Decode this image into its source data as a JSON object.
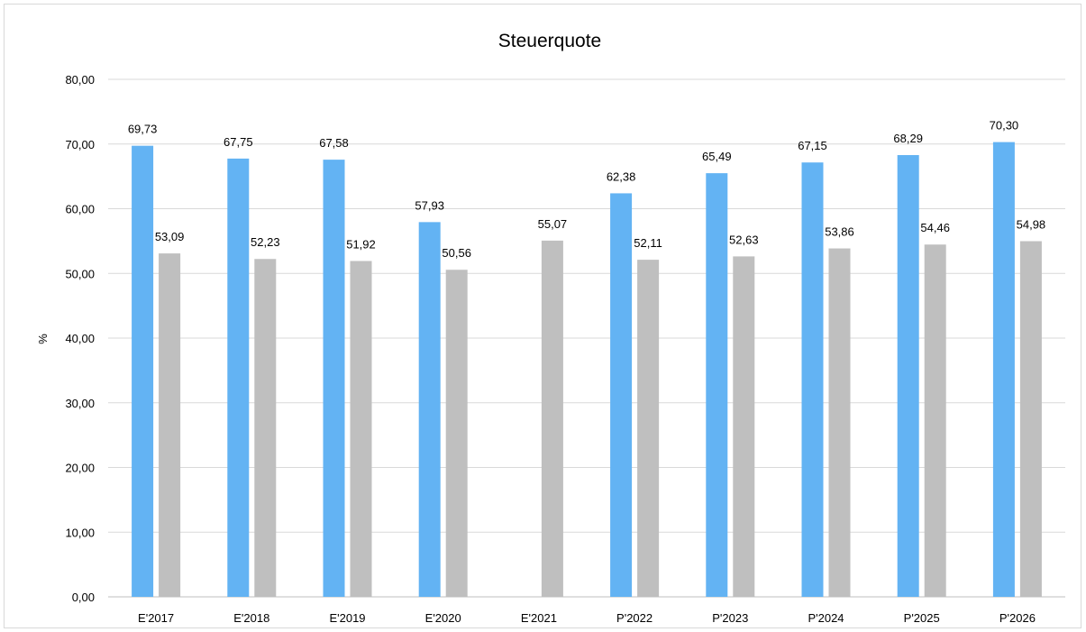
{
  "chart_data": {
    "type": "bar",
    "title": "Steuerquote",
    "xlabel": "",
    "ylabel": "%",
    "ylim": [
      0,
      80
    ],
    "yticks": [
      "0,00",
      "10,00",
      "20,00",
      "30,00",
      "40,00",
      "50,00",
      "60,00",
      "70,00",
      "80,00"
    ],
    "categories": [
      "E'2017",
      "E'2018",
      "E'2019",
      "E'2020",
      "E'2021",
      "P'2022",
      "P'2023",
      "P'2024",
      "P'2025",
      "P'2026"
    ],
    "series": [
      {
        "color": "#63b3f3",
        "values": [
          69.73,
          67.75,
          67.58,
          57.93,
          null,
          62.38,
          65.49,
          67.15,
          68.29,
          70.3
        ],
        "labels": [
          "69,73",
          "67,75",
          "67,58",
          "57,93",
          "",
          "62,38",
          "65,49",
          "67,15",
          "68,29",
          "70,30"
        ]
      },
      {
        "color": "#bfbfbf",
        "values": [
          53.09,
          52.23,
          51.92,
          50.56,
          55.07,
          52.11,
          52.63,
          53.86,
          54.46,
          54.98
        ],
        "labels": [
          "53,09",
          "52,23",
          "51,92",
          "50,56",
          "55,07",
          "52,11",
          "52,63",
          "53,86",
          "54,46",
          "54,98"
        ]
      }
    ],
    "grid": true,
    "legend": "none"
  }
}
